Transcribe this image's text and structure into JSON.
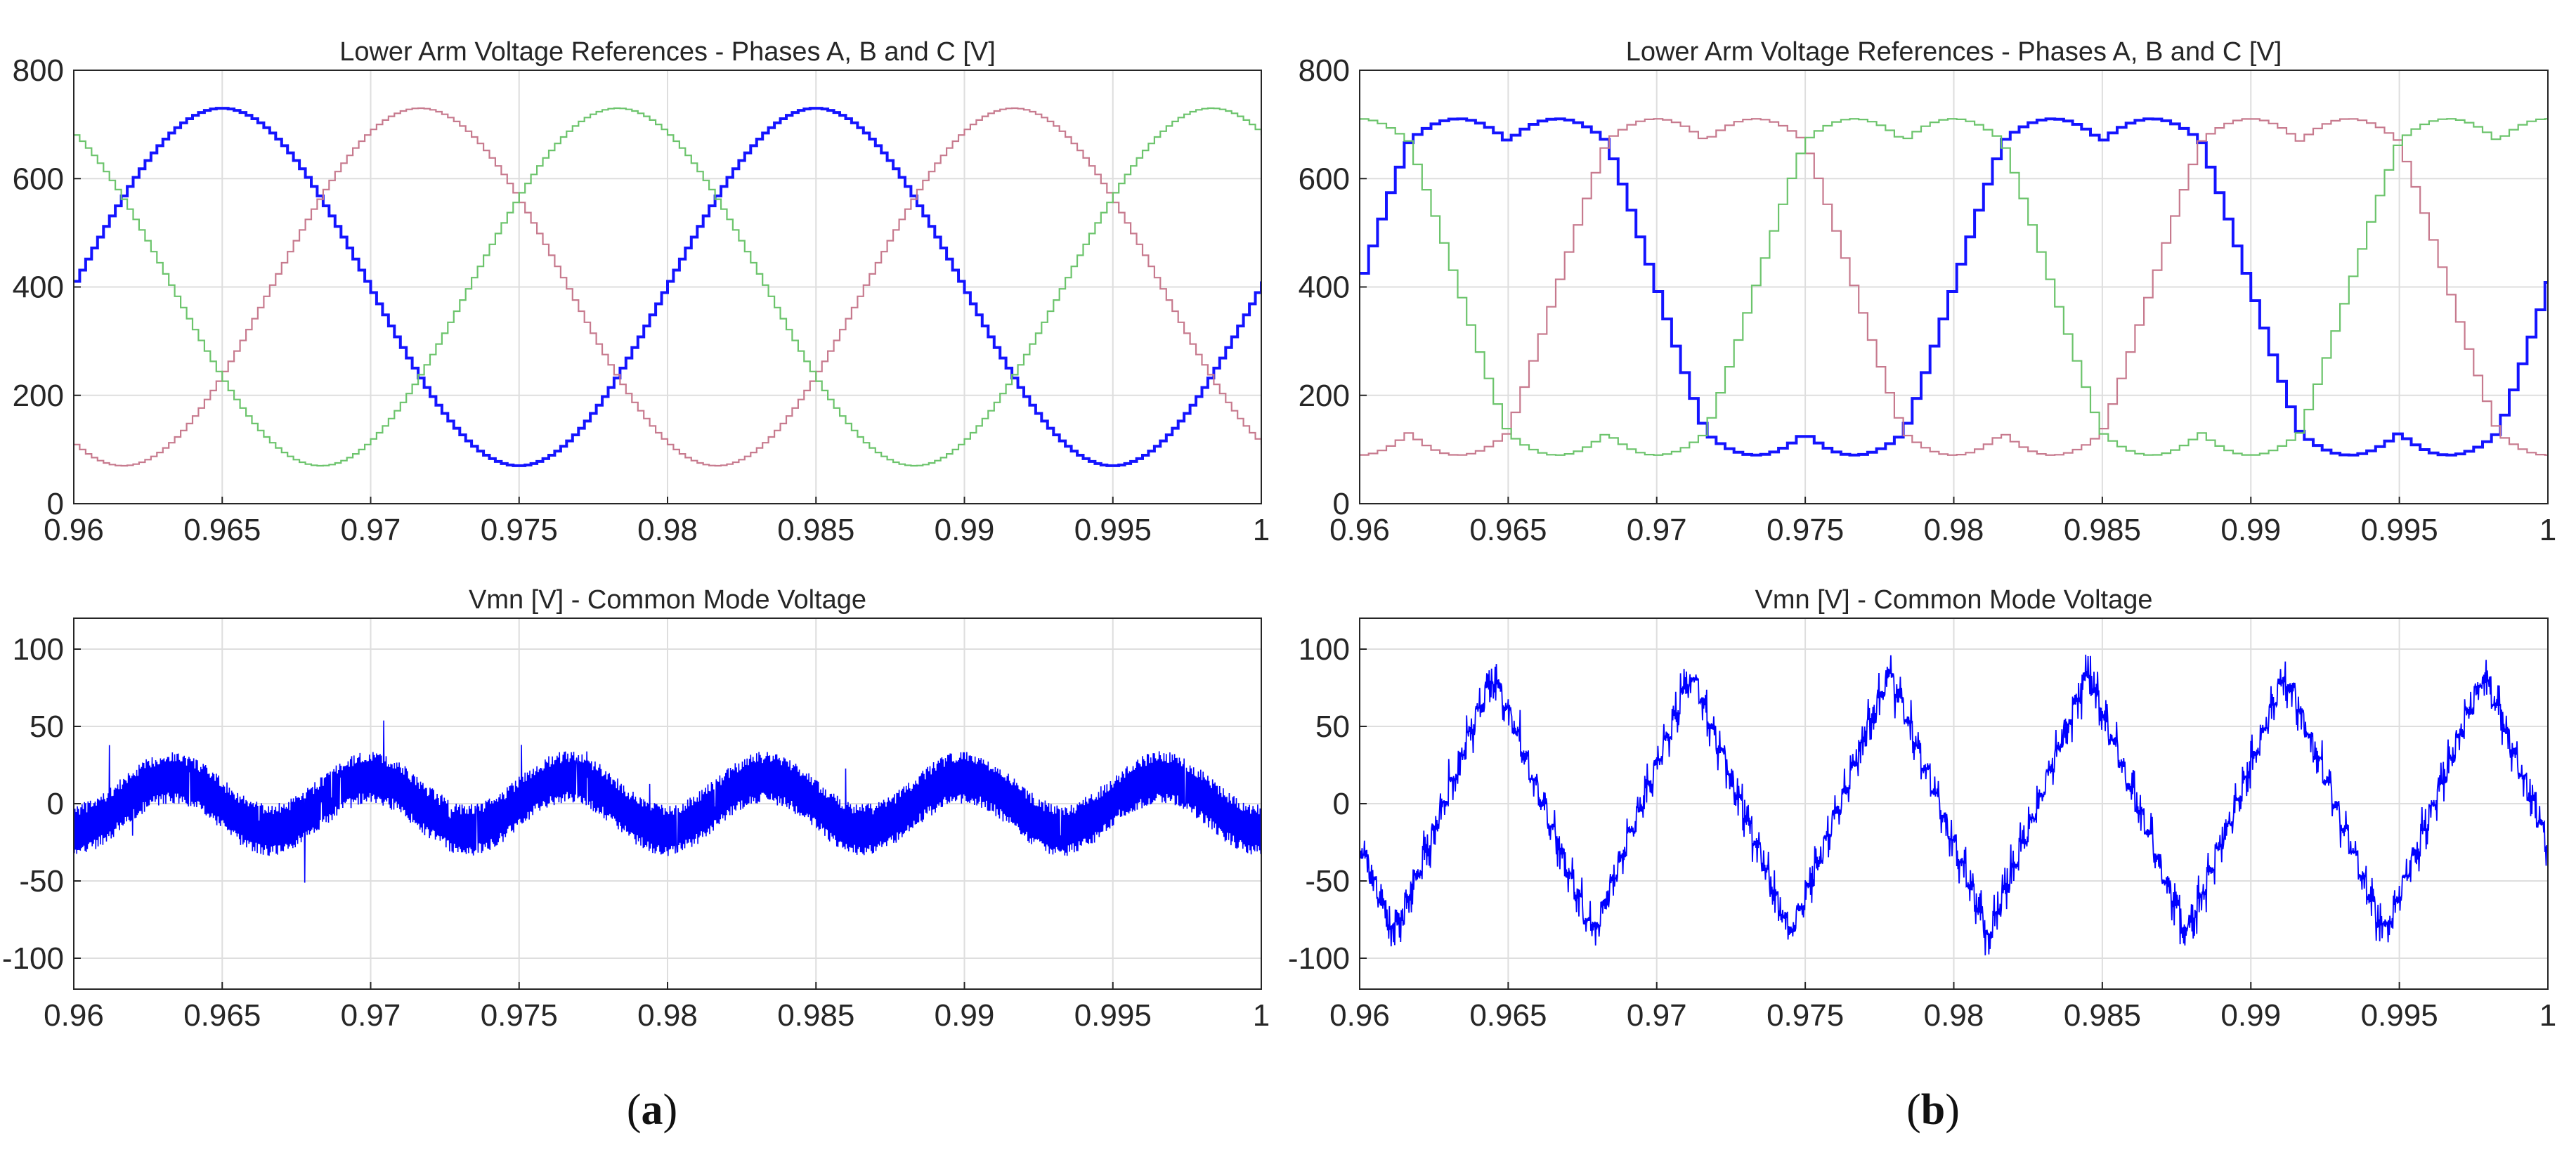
{
  "figure": {
    "panel_labels": [
      {
        "open": "(",
        "letter": "a",
        "close": ")"
      },
      {
        "open": "(",
        "letter": "b",
        "close": ")"
      }
    ]
  },
  "colors": {
    "phase_a": "#1414ff",
    "phase_b": "#c77a8e",
    "phase_c": "#6cc46c",
    "cmv": "#0000ff",
    "grid": "#dedede",
    "axis": "#262626"
  },
  "chart_data": [
    {
      "id": "a-top",
      "type": "line",
      "title": "Lower Arm Voltage References - Phases A, B and C [V]",
      "xlabel": "",
      "ylabel": "",
      "xlim": [
        0.96,
        1.0
      ],
      "ylim": [
        0,
        800
      ],
      "xticks": [
        0.96,
        0.965,
        0.97,
        0.975,
        0.98,
        0.985,
        0.99,
        0.995,
        1.0
      ],
      "xtick_labels": [
        "0.96",
        "0.965",
        "0.97",
        "0.975",
        "0.98",
        "0.985",
        "0.99",
        "0.995",
        "1"
      ],
      "yticks": [
        0,
        200,
        400,
        600,
        800
      ],
      "ytick_labels": [
        "0",
        "200",
        "400",
        "600",
        "800"
      ],
      "grid": true,
      "waveform": {
        "kind": "sine",
        "offset": 400,
        "amplitude": 330,
        "frequency_hz": 50,
        "phase_a_peak_time": 0.965,
        "step_s": 0.0002
      },
      "series": [
        {
          "phase_shift_deg": 0,
          "color_key": "phase_a"
        },
        {
          "phase_shift_deg": -120,
          "color_key": "phase_b"
        },
        {
          "phase_shift_deg": 120,
          "color_key": "phase_c"
        }
      ]
    },
    {
      "id": "a-bottom",
      "type": "line",
      "title": "Vmn [V] - Common Mode Voltage",
      "xlabel": "",
      "ylabel": "",
      "xlim": [
        0.96,
        1.0
      ],
      "ylim": [
        -120,
        120
      ],
      "xticks": [
        0.96,
        0.965,
        0.97,
        0.975,
        0.98,
        0.985,
        0.99,
        0.995,
        1.0
      ],
      "xtick_labels": [
        "0.96",
        "0.965",
        "0.97",
        "0.975",
        "0.98",
        "0.985",
        "0.99",
        "0.995",
        "1"
      ],
      "yticks": [
        -100,
        -50,
        0,
        50,
        100
      ],
      "ytick_labels": [
        "-100",
        "-50",
        "0",
        "50",
        "100"
      ],
      "grid": true,
      "waveform": {
        "kind": "triplen-sine-with-switching-ripple",
        "base_amplitude": 17,
        "frequency_hz": 150,
        "base_peak_time": 0.9633,
        "ripple_amplitude": 17,
        "spike_amplitude": 32,
        "sample_step_s": 2e-05
      },
      "series": [
        {
          "color_key": "cmv"
        }
      ]
    },
    {
      "id": "b-top",
      "type": "line",
      "title": "Lower Arm Voltage References - Phases A, B and C [V]",
      "xlabel": "",
      "ylabel": "",
      "xlim": [
        0.96,
        1.0
      ],
      "ylim": [
        0,
        800
      ],
      "xticks": [
        0.96,
        0.965,
        0.97,
        0.975,
        0.98,
        0.985,
        0.99,
        0.995,
        1.0
      ],
      "xtick_labels": [
        "0.96",
        "0.965",
        "0.97",
        "0.975",
        "0.98",
        "0.985",
        "0.99",
        "0.995",
        "1"
      ],
      "yticks": [
        0,
        200,
        400,
        600,
        800
      ],
      "ytick_labels": [
        "0",
        "200",
        "400",
        "600",
        "800"
      ],
      "grid": true,
      "waveform": {
        "kind": "sine-plus-triangle-injection",
        "offset": 400,
        "amplitude": 330,
        "injection_amplitude": 105,
        "frequency_hz": 50,
        "phase_a_peak_time": 0.965,
        "step_s": 0.0003
      },
      "series": [
        {
          "phase_shift_deg": 0,
          "color_key": "phase_a"
        },
        {
          "phase_shift_deg": -120,
          "color_key": "phase_b"
        },
        {
          "phase_shift_deg": 120,
          "color_key": "phase_c"
        }
      ]
    },
    {
      "id": "b-bottom",
      "type": "line",
      "title": "Vmn [V] - Common Mode Voltage",
      "xlabel": "",
      "ylabel": "",
      "xlim": [
        0.96,
        1.0
      ],
      "ylim": [
        -120,
        120
      ],
      "xticks": [
        0.96,
        0.965,
        0.97,
        0.975,
        0.98,
        0.985,
        0.99,
        0.995,
        1.0
      ],
      "xtick_labels": [
        "0.96",
        "0.965",
        "0.97",
        "0.975",
        "0.98",
        "0.985",
        "0.99",
        "0.995",
        "1"
      ],
      "yticks": [
        -100,
        -50,
        0,
        50,
        100
      ],
      "ytick_labels": [
        "-100",
        "-50",
        "0",
        "50",
        "100"
      ],
      "grid": true,
      "waveform": {
        "kind": "triangle-with-steps-and-ripple",
        "amplitude": 85,
        "frequency_hz": 150,
        "base_peak_time": 0.9645,
        "step_s": 0.0003,
        "ripple_amplitude": 14,
        "sample_step_s": 2e-05
      },
      "series": [
        {
          "color_key": "cmv"
        }
      ]
    }
  ]
}
